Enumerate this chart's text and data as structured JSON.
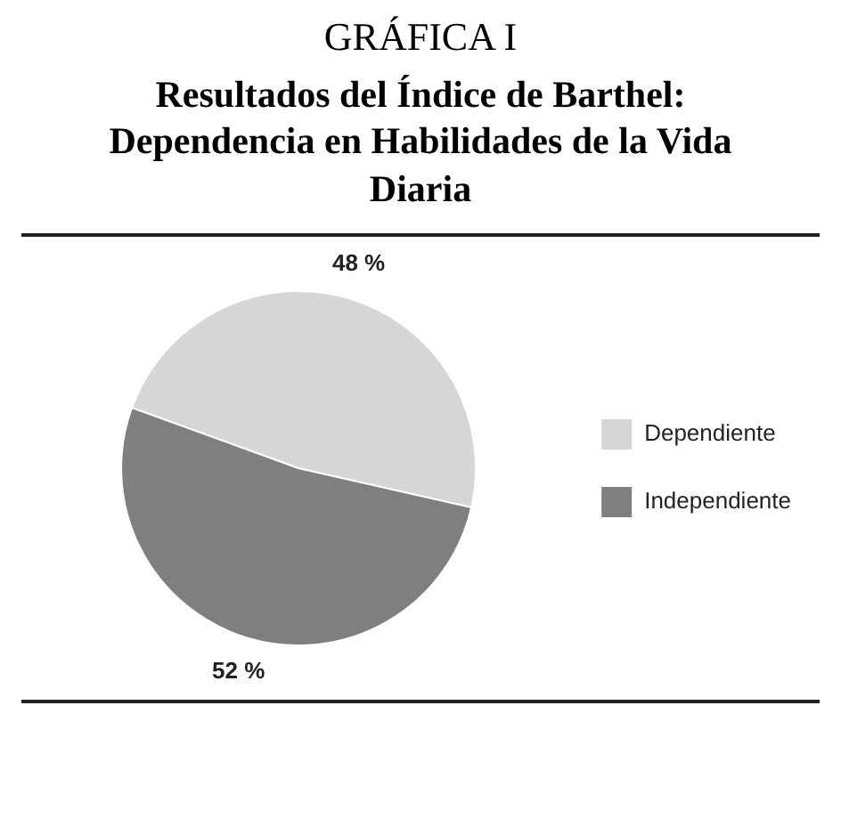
{
  "chart_data": {
    "type": "pie",
    "title": "GRÁFICA I",
    "subtitle": "Resultados del Índice de Barthel: Dependencia en Habilidades de la Vida Diaria",
    "categories": [
      "Dependiente",
      "Independiente"
    ],
    "values": [
      48,
      52
    ],
    "value_labels": [
      "48 %",
      "52 %"
    ],
    "colors": [
      "#d6d6d6",
      "#7f7f7f"
    ],
    "legend": "right"
  }
}
